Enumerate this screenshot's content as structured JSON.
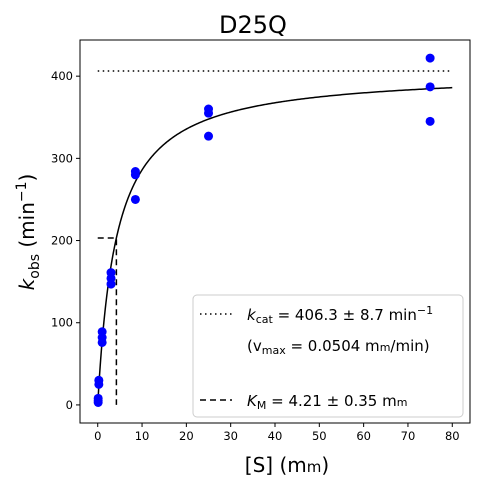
{
  "chart_data": {
    "type": "scatter",
    "title": "D25Q",
    "xlabel": {
      "main": "[S] (m",
      "unit_sc": "m",
      "close": ")"
    },
    "ylabel": {
      "k": "k",
      "sub": "obs",
      "mid": " (min",
      "sup": "−1",
      "close": ")"
    },
    "xlim": [
      -4,
      84
    ],
    "ylim": [
      -22,
      444
    ],
    "xticks": [
      0,
      10,
      20,
      30,
      40,
      50,
      60,
      70,
      80
    ],
    "yticks": [
      0,
      100,
      200,
      300,
      400
    ],
    "colors": {
      "points": "#0000ff",
      "lines": "#000000"
    },
    "series": [
      {
        "values": [
          {
            "x": 0.1,
            "y": 3
          },
          {
            "x": 0.1,
            "y": 5
          },
          {
            "x": 0.1,
            "y": 8
          },
          {
            "x": 0.25,
            "y": 25
          },
          {
            "x": 0.25,
            "y": 30
          },
          {
            "x": 1.0,
            "y": 76
          },
          {
            "x": 1.0,
            "y": 82
          },
          {
            "x": 1.0,
            "y": 89
          },
          {
            "x": 3.0,
            "y": 147
          },
          {
            "x": 3.0,
            "y": 154
          },
          {
            "x": 3.0,
            "y": 161
          },
          {
            "x": 8.5,
            "y": 250
          },
          {
            "x": 8.5,
            "y": 280
          },
          {
            "x": 8.5,
            "y": 284
          },
          {
            "x": 25,
            "y": 327
          },
          {
            "x": 25,
            "y": 355
          },
          {
            "x": 25,
            "y": 360
          },
          {
            "x": 75,
            "y": 345
          },
          {
            "x": 75,
            "y": 387
          },
          {
            "x": 75,
            "y": 422
          }
        ]
      }
    ],
    "fit": {
      "model": "michaelis-menten",
      "kcat": 406.3,
      "km": 4.21,
      "x_range": [
        0,
        80
      ]
    },
    "kcat_line": {
      "y": 406.3,
      "x_range": [
        0,
        80
      ]
    },
    "km_lines": {
      "x": 4.21,
      "y": 203.15,
      "x_start": 0
    },
    "legend": {
      "placement": "lower-right",
      "kcat": {
        "k": "k",
        "sub": "cat",
        "rest": " = 406.3 ± 8.7 min",
        "sup": "−1"
      },
      "vmax": {
        "open": "(v",
        "sub": "max",
        "rest": " = 0.0504 m",
        "unit_sc": "m",
        "tail": "/min)"
      },
      "km": {
        "k": "K",
        "sub": "M",
        "rest": " = 4.21 ± 0.35 m",
        "unit_sc": "m"
      }
    }
  }
}
